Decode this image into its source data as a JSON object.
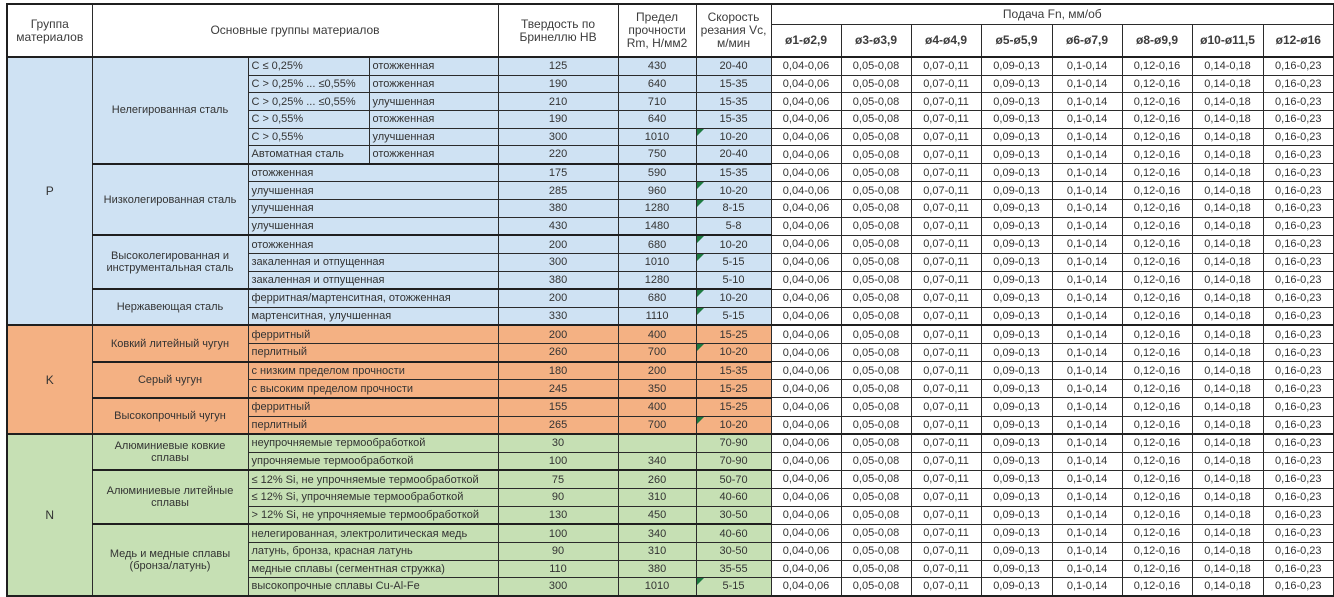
{
  "header": {
    "col_group": "Группа материалов",
    "col_main": "Основные группы материалов",
    "col_hb": "Твердость по Бринеллю HB",
    "col_rm": "Предел прочности Rm, Н/мм2",
    "col_vc": "Скорость резания Vc, м/мин",
    "feed_title": "Подача Fn, мм/об",
    "feed_cols": [
      "ø1-ø2,9",
      "ø3-ø3,9",
      "ø4-ø4,9",
      "ø5-ø5,9",
      "ø6-ø7,9",
      "ø8-ø9,9",
      "ø10-ø11,5",
      "ø12-ø16"
    ]
  },
  "feeds": [
    "0,04-0,06",
    "0,05-0,08",
    "0,07-0,11",
    "0,09-0,13",
    "0,1-0,14",
    "0,12-0,16",
    "0,14-0,18",
    "0,16-0,23"
  ],
  "flag_color": "#1d7a40",
  "groups": [
    {
      "code": "P",
      "color": "#cfe2f3",
      "subgroups": [
        {
          "name": "Нелегированная сталь",
          "rows": [
            {
              "cond": [
                "C ≤ 0,25%",
                "отожженная"
              ],
              "hb": "125",
              "rm": "430",
              "vc": "20-40",
              "flag": false
            },
            {
              "cond": [
                "C > 0,25% ... ≤0,55%",
                "отожженная"
              ],
              "hb": "190",
              "rm": "640",
              "vc": "15-35",
              "flag": false
            },
            {
              "cond": [
                "C > 0,25% ... ≤0,55%",
                "улучшенная"
              ],
              "hb": "210",
              "rm": "710",
              "vc": "15-35",
              "flag": false
            },
            {
              "cond": [
                "C > 0,55%",
                "отожженная"
              ],
              "hb": "190",
              "rm": "640",
              "vc": "15-35",
              "flag": false
            },
            {
              "cond": [
                "C > 0,55%",
                "улучшенная"
              ],
              "hb": "300",
              "rm": "1010",
              "vc": "10-20",
              "flag": true
            },
            {
              "cond": [
                "Автоматная сталь",
                "отожженная"
              ],
              "hb": "220",
              "rm": "750",
              "vc": "20-40",
              "flag": false
            }
          ]
        },
        {
          "name": "Низколегированная сталь",
          "rows": [
            {
              "cond": [
                "отожженная"
              ],
              "hb": "175",
              "rm": "590",
              "vc": "15-35",
              "flag": false
            },
            {
              "cond": [
                "улучшенная"
              ],
              "hb": "285",
              "rm": "960",
              "vc": "10-20",
              "flag": true
            },
            {
              "cond": [
                "улучшенная"
              ],
              "hb": "380",
              "rm": "1280",
              "vc": "8-15",
              "flag": true
            },
            {
              "cond": [
                "улучшенная"
              ],
              "hb": "430",
              "rm": "1480",
              "vc": "5-8",
              "flag": false
            }
          ]
        },
        {
          "name": "Высоколегированная и инструментальная сталь",
          "rows": [
            {
              "cond": [
                "отожженная"
              ],
              "hb": "200",
              "rm": "680",
              "vc": "10-20",
              "flag": true
            },
            {
              "cond": [
                "закаленная и отпущенная"
              ],
              "hb": "300",
              "rm": "1010",
              "vc": "5-15",
              "flag": true
            },
            {
              "cond": [
                "закаленная и отпущенная"
              ],
              "hb": "380",
              "rm": "1280",
              "vc": "5-10",
              "flag": false
            }
          ]
        },
        {
          "name": "Нержавеющая сталь",
          "rows": [
            {
              "cond": [
                "ферритная/мартенситная, отожженная"
              ],
              "hb": "200",
              "rm": "680",
              "vc": "10-20",
              "flag": true
            },
            {
              "cond": [
                "мартенситная, улучшенная"
              ],
              "hb": "330",
              "rm": "1110",
              "vc": "5-15",
              "flag": true
            }
          ]
        }
      ]
    },
    {
      "code": "K",
      "color": "#f4b183",
      "subgroups": [
        {
          "name": "Ковкий литейный чугун",
          "rows": [
            {
              "cond": [
                "ферритный"
              ],
              "hb": "200",
              "rm": "400",
              "vc": "15-25",
              "flag": false
            },
            {
              "cond": [
                "перлитный"
              ],
              "hb": "260",
              "rm": "700",
              "vc": "10-20",
              "flag": true
            }
          ]
        },
        {
          "name": "Серый чугун",
          "rows": [
            {
              "cond": [
                "с низким пределом прочности"
              ],
              "hb": "180",
              "rm": "200",
              "vc": "15-35",
              "flag": false
            },
            {
              "cond": [
                "с высоким пределом прочности"
              ],
              "hb": "245",
              "rm": "350",
              "vc": "15-25",
              "flag": false
            }
          ]
        },
        {
          "name": "Высокопрочный чугун",
          "rows": [
            {
              "cond": [
                "ферритный"
              ],
              "hb": "155",
              "rm": "400",
              "vc": "15-25",
              "flag": false
            },
            {
              "cond": [
                "перлитный"
              ],
              "hb": "265",
              "rm": "700",
              "vc": "10-20",
              "flag": true
            }
          ]
        }
      ]
    },
    {
      "code": "N",
      "color": "#c6e0b4",
      "subgroups": [
        {
          "name": "Алюминиевые ковкие сплавы",
          "rows": [
            {
              "cond": [
                "неупрочняемые термообработкой"
              ],
              "hb": "30",
              "rm": "",
              "vc": "70-90",
              "flag": false
            },
            {
              "cond": [
                "упрочняемые термообработкой"
              ],
              "hb": "100",
              "rm": "340",
              "vc": "70-90",
              "flag": false
            }
          ]
        },
        {
          "name": "Алюминиевые литейные сплавы",
          "rows": [
            {
              "cond": [
                "≤ 12% Si, не упрочняемые термообработкой"
              ],
              "hb": "75",
              "rm": "260",
              "vc": "50-70",
              "flag": false
            },
            {
              "cond": [
                "≤ 12% Si, упрочняемые термообработкой"
              ],
              "hb": "90",
              "rm": "310",
              "vc": "40-60",
              "flag": false
            },
            {
              "cond": [
                "> 12% Si, не упрочняемые термообработкой"
              ],
              "hb": "130",
              "rm": "450",
              "vc": "30-50",
              "flag": false
            }
          ]
        },
        {
          "name": "Медь и медные сплавы (бронза/латунь)",
          "rows": [
            {
              "cond": [
                "нелегированная, электролитическая медь"
              ],
              "hb": "100",
              "rm": "340",
              "vc": "40-60",
              "flag": false
            },
            {
              "cond": [
                "латунь, бронза, красная латунь"
              ],
              "hb": "90",
              "rm": "310",
              "vc": "30-50",
              "flag": false
            },
            {
              "cond": [
                "медные сплавы (сегментная стружка)"
              ],
              "hb": "110",
              "rm": "380",
              "vc": "35-55",
              "flag": false
            },
            {
              "cond": [
                "высокопрочные сплавы Cu-Al-Fe"
              ],
              "hb": "300",
              "rm": "1010",
              "vc": "5-15",
              "flag": true
            }
          ]
        }
      ]
    }
  ]
}
